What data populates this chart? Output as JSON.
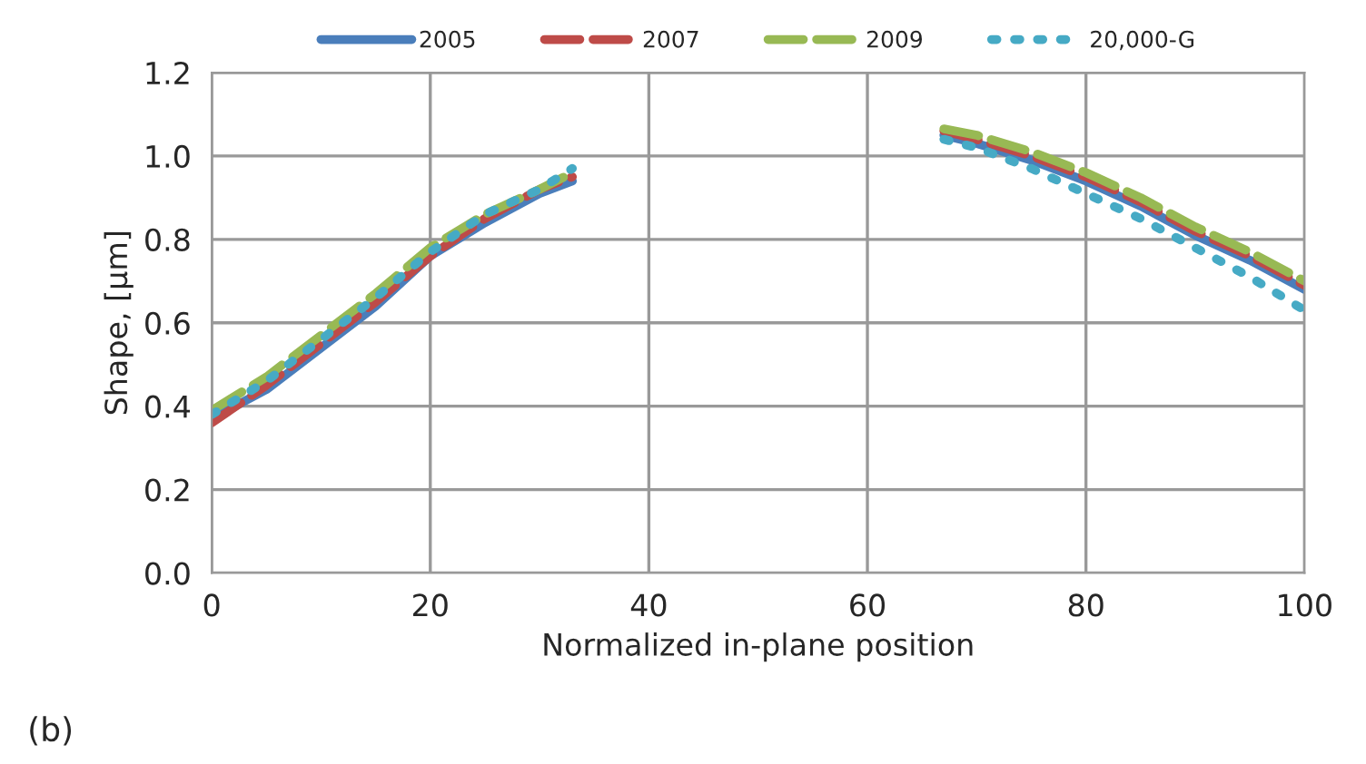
{
  "chart_data": {
    "type": "line",
    "xlabel": "Normalized in-plane position",
    "ylabel": "Shape, [µm]",
    "x": [
      0,
      5,
      10,
      15,
      20,
      25,
      30,
      33,
      50,
      67,
      70,
      75,
      80,
      85,
      90,
      95,
      100
    ],
    "series": [
      {
        "name": "2005",
        "color": "#4a7ebb",
        "line_style": "solid",
        "values": [
          0.37,
          0.44,
          0.54,
          0.64,
          0.76,
          0.84,
          0.91,
          0.94,
          null,
          1.05,
          1.03,
          0.99,
          0.94,
          0.88,
          0.81,
          0.75,
          0.68
        ]
      },
      {
        "name": "2007",
        "color": "#be4b48",
        "line_style": "dashed",
        "values": [
          0.36,
          0.45,
          0.55,
          0.65,
          0.76,
          0.85,
          0.92,
          0.95,
          null,
          1.06,
          1.04,
          1.0,
          0.95,
          0.89,
          0.82,
          0.76,
          0.69
        ]
      },
      {
        "name": "2009",
        "color": "#98b954",
        "line_style": "dashed",
        "values": [
          0.39,
          0.47,
          0.57,
          0.67,
          0.78,
          0.86,
          0.92,
          0.96,
          null,
          1.065,
          1.05,
          1.01,
          0.96,
          0.9,
          0.83,
          0.77,
          0.7
        ]
      },
      {
        "name": "20,000-G",
        "color": "#46aac5",
        "line_style": "dotted",
        "values": [
          0.38,
          0.46,
          0.56,
          0.66,
          0.77,
          0.86,
          0.92,
          0.97,
          null,
          1.04,
          1.02,
          0.97,
          0.91,
          0.85,
          0.78,
          0.71,
          0.63
        ]
      }
    ],
    "xlim": [
      0,
      100
    ],
    "xticks": [
      0,
      20,
      40,
      60,
      80,
      100
    ],
    "ylim": [
      0.0,
      1.2
    ],
    "yticks": [
      {
        "value": 0.0,
        "label": "0.0"
      },
      {
        "value": 0.2,
        "label": "0.2"
      },
      {
        "value": 0.4,
        "label": "0.4"
      },
      {
        "value": 0.6,
        "label": "0.6"
      },
      {
        "value": 0.8,
        "label": "0.8"
      },
      {
        "value": 1.0,
        "label": "1.0"
      },
      {
        "value": 1.2,
        "label": "1.2"
      }
    ],
    "grid": true,
    "legend": "top",
    "annotations": [
      "(b)"
    ]
  }
}
